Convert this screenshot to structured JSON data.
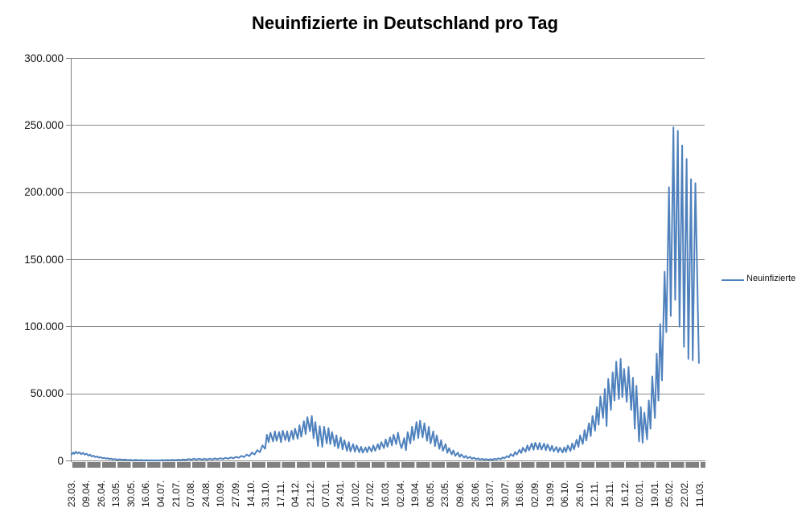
{
  "chart_data": {
    "type": "line",
    "title": "Neuinfizierte in Deutschland pro Tag",
    "xlabel": "",
    "ylabel": "",
    "ylim": [
      0,
      300000
    ],
    "grid": true,
    "legend_position": "right",
    "x_tick_labels_rotated": true,
    "x_tick_interval_days": 17,
    "y_tick_labels": [
      "300.000",
      "250.000",
      "200.000",
      "150.000",
      "100.000",
      "50.000",
      "0"
    ],
    "x_tick_labels": [
      "23.03.",
      "09.04.",
      "26.04.",
      "13.05.",
      "30.05.",
      "16.06.",
      "04.07.",
      "21.07.",
      "07.08.",
      "24.08.",
      "10.09.",
      "27.09.",
      "14.10.",
      "31.10.",
      "17.11.",
      "04.12.",
      "21.12.",
      "07.01.",
      "24.01.",
      "10.02.",
      "27.02.",
      "16.03.",
      "02.04.",
      "19.04.",
      "06.05.",
      "23.05.",
      "09.06.",
      "26.06.",
      "13.07.",
      "30.07.",
      "16.08.",
      "02.09.",
      "19.09.",
      "06.10.",
      "26.10.",
      "12.11.",
      "29.11.",
      "16.12.",
      "02.01.",
      "19.01.",
      "05.02.",
      "22.02.",
      "11.03."
    ],
    "colors": {
      "series": "#4F81BD",
      "gridline": "#868686",
      "axis": "#808080"
    },
    "series": [
      {
        "name": "Neuinfizierte",
        "color": "#4F81BD",
        "points_format": "[day_index_from_23.03.2020, new_infections]",
        "points": [
          [
            0,
            4800
          ],
          [
            2,
            6300
          ],
          [
            3,
            5200
          ],
          [
            5,
            6800
          ],
          [
            7,
            5600
          ],
          [
            9,
            6400
          ],
          [
            11,
            5000
          ],
          [
            13,
            6000
          ],
          [
            15,
            4600
          ],
          [
            17,
            5400
          ],
          [
            19,
            3900
          ],
          [
            21,
            4600
          ],
          [
            23,
            3300
          ],
          [
            25,
            3900
          ],
          [
            27,
            2800
          ],
          [
            29,
            3300
          ],
          [
            31,
            2400
          ],
          [
            33,
            2800
          ],
          [
            35,
            2000
          ],
          [
            37,
            2300
          ],
          [
            39,
            1700
          ],
          [
            41,
            2000
          ],
          [
            43,
            1400
          ],
          [
            45,
            1700
          ],
          [
            47,
            1100
          ],
          [
            49,
            1400
          ],
          [
            52,
            900
          ],
          [
            55,
            1200
          ],
          [
            58,
            700
          ],
          [
            61,
            1000
          ],
          [
            64,
            550
          ],
          [
            67,
            800
          ],
          [
            70,
            450
          ],
          [
            73,
            700
          ],
          [
            76,
            400
          ],
          [
            79,
            600
          ],
          [
            82,
            350
          ],
          [
            85,
            550
          ],
          [
            88,
            350
          ],
          [
            91,
            500
          ],
          [
            94,
            300
          ],
          [
            97,
            500
          ],
          [
            100,
            350
          ],
          [
            103,
            600
          ],
          [
            106,
            400
          ],
          [
            109,
            650
          ],
          [
            112,
            450
          ],
          [
            115,
            750
          ],
          [
            118,
            500
          ],
          [
            121,
            850
          ],
          [
            124,
            600
          ],
          [
            127,
            1100
          ],
          [
            130,
            800
          ],
          [
            133,
            1400
          ],
          [
            136,
            950
          ],
          [
            139,
            1550
          ],
          [
            142,
            1000
          ],
          [
            145,
            1600
          ],
          [
            148,
            1050
          ],
          [
            151,
            1500
          ],
          [
            154,
            1000
          ],
          [
            157,
            1600
          ],
          [
            160,
            1100
          ],
          [
            163,
            1800
          ],
          [
            166,
            1250
          ],
          [
            169,
            2000
          ],
          [
            172,
            1400
          ],
          [
            175,
            2300
          ],
          [
            178,
            1600
          ],
          [
            181,
            2600
          ],
          [
            184,
            1900
          ],
          [
            187,
            3000
          ],
          [
            190,
            2300
          ],
          [
            193,
            3700
          ],
          [
            196,
            2800
          ],
          [
            199,
            4700
          ],
          [
            202,
            3600
          ],
          [
            205,
            6200
          ],
          [
            208,
            4800
          ],
          [
            211,
            8000
          ],
          [
            214,
            6500
          ],
          [
            217,
            11500
          ],
          [
            220,
            9000
          ],
          [
            222,
            19500
          ],
          [
            224,
            14000
          ],
          [
            226,
            21000
          ],
          [
            229,
            14500
          ],
          [
            231,
            22000
          ],
          [
            233,
            15000
          ],
          [
            236,
            21500
          ],
          [
            238,
            14000
          ],
          [
            240,
            22500
          ],
          [
            243,
            15500
          ],
          [
            245,
            22000
          ],
          [
            247,
            14500
          ],
          [
            250,
            22500
          ],
          [
            252,
            16000
          ],
          [
            254,
            24000
          ],
          [
            257,
            16500
          ],
          [
            259,
            26500
          ],
          [
            261,
            18000
          ],
          [
            264,
            29500
          ],
          [
            266,
            20000
          ],
          [
            268,
            32500
          ],
          [
            271,
            22000
          ],
          [
            273,
            33500
          ],
          [
            275,
            17000
          ],
          [
            277,
            29000
          ],
          [
            280,
            11000
          ],
          [
            282,
            26000
          ],
          [
            285,
            10500
          ],
          [
            287,
            25500
          ],
          [
            290,
            13000
          ],
          [
            292,
            24500
          ],
          [
            294,
            12500
          ],
          [
            296,
            21500
          ],
          [
            299,
            11000
          ],
          [
            301,
            19000
          ],
          [
            303,
            9500
          ],
          [
            306,
            17500
          ],
          [
            308,
            8500
          ],
          [
            310,
            15500
          ],
          [
            313,
            7500
          ],
          [
            315,
            14000
          ],
          [
            317,
            7000
          ],
          [
            320,
            12500
          ],
          [
            322,
            6800
          ],
          [
            324,
            11500
          ],
          [
            327,
            6500
          ],
          [
            329,
            10500
          ],
          [
            331,
            6200
          ],
          [
            334,
            10000
          ],
          [
            336,
            6500
          ],
          [
            338,
            10500
          ],
          [
            341,
            7000
          ],
          [
            343,
            11500
          ],
          [
            345,
            7500
          ],
          [
            348,
            12500
          ],
          [
            350,
            8500
          ],
          [
            352,
            14000
          ],
          [
            355,
            9500
          ],
          [
            357,
            16000
          ],
          [
            359,
            10500
          ],
          [
            362,
            17500
          ],
          [
            364,
            11500
          ],
          [
            366,
            19500
          ],
          [
            369,
            12500
          ],
          [
            371,
            21000
          ],
          [
            373,
            13500
          ],
          [
            375,
            9500
          ],
          [
            378,
            17000
          ],
          [
            380,
            8000
          ],
          [
            382,
            21500
          ],
          [
            385,
            13000
          ],
          [
            387,
            25500
          ],
          [
            389,
            15500
          ],
          [
            392,
            29000
          ],
          [
            394,
            17000
          ],
          [
            396,
            30000
          ],
          [
            399,
            17500
          ],
          [
            401,
            28000
          ],
          [
            404,
            15000
          ],
          [
            406,
            25500
          ],
          [
            408,
            13000
          ],
          [
            411,
            22000
          ],
          [
            413,
            11000
          ],
          [
            415,
            19000
          ],
          [
            418,
            9000
          ],
          [
            420,
            15500
          ],
          [
            422,
            7500
          ],
          [
            425,
            12500
          ],
          [
            427,
            6000
          ],
          [
            429,
            9500
          ],
          [
            432,
            4800
          ],
          [
            434,
            7800
          ],
          [
            436,
            3800
          ],
          [
            439,
            6200
          ],
          [
            441,
            3000
          ],
          [
            443,
            4800
          ],
          [
            446,
            2400
          ],
          [
            448,
            3800
          ],
          [
            450,
            1900
          ],
          [
            453,
            3000
          ],
          [
            455,
            1500
          ],
          [
            457,
            2400
          ],
          [
            460,
            1200
          ],
          [
            462,
            1900
          ],
          [
            464,
            1000
          ],
          [
            467,
            1500
          ],
          [
            469,
            850
          ],
          [
            471,
            1300
          ],
          [
            474,
            800
          ],
          [
            476,
            1250
          ],
          [
            478,
            900
          ],
          [
            481,
            1500
          ],
          [
            483,
            1100
          ],
          [
            485,
            1900
          ],
          [
            488,
            1400
          ],
          [
            490,
            2600
          ],
          [
            492,
            1900
          ],
          [
            495,
            3600
          ],
          [
            497,
            2600
          ],
          [
            499,
            5000
          ],
          [
            502,
            3600
          ],
          [
            504,
            6600
          ],
          [
            506,
            4700
          ],
          [
            509,
            8300
          ],
          [
            511,
            5800
          ],
          [
            513,
            9800
          ],
          [
            516,
            6800
          ],
          [
            518,
            11500
          ],
          [
            520,
            7800
          ],
          [
            523,
            13000
          ],
          [
            525,
            8300
          ],
          [
            527,
            13500
          ],
          [
            530,
            8600
          ],
          [
            532,
            13400
          ],
          [
            534,
            8400
          ],
          [
            537,
            12800
          ],
          [
            539,
            8000
          ],
          [
            541,
            12200
          ],
          [
            544,
            7600
          ],
          [
            546,
            11200
          ],
          [
            548,
            7000
          ],
          [
            551,
            10400
          ],
          [
            553,
            6400
          ],
          [
            555,
            9800
          ],
          [
            558,
            6200
          ],
          [
            560,
            10000
          ],
          [
            562,
            6600
          ],
          [
            564,
            11400
          ],
          [
            567,
            7400
          ],
          [
            569,
            13000
          ],
          [
            571,
            8600
          ],
          [
            574,
            15800
          ],
          [
            576,
            10400
          ],
          [
            578,
            19000
          ],
          [
            581,
            12600
          ],
          [
            583,
            23000
          ],
          [
            585,
            15200
          ],
          [
            588,
            28000
          ],
          [
            590,
            18500
          ],
          [
            592,
            33500
          ],
          [
            595,
            22500
          ],
          [
            597,
            40000
          ],
          [
            599,
            27000
          ],
          [
            601,
            48000
          ],
          [
            604,
            32000
          ],
          [
            606,
            53500
          ],
          [
            608,
            26000
          ],
          [
            610,
            61000
          ],
          [
            613,
            38000
          ],
          [
            615,
            66000
          ],
          [
            617,
            45000
          ],
          [
            619,
            74000
          ],
          [
            622,
            46000
          ],
          [
            624,
            76000
          ],
          [
            626,
            47500
          ],
          [
            628,
            68500
          ],
          [
            631,
            44000
          ],
          [
            633,
            70000
          ],
          [
            636,
            38000
          ],
          [
            638,
            62000
          ],
          [
            640,
            24000
          ],
          [
            642,
            56000
          ],
          [
            645,
            14500
          ],
          [
            647,
            40000
          ],
          [
            649,
            13500
          ],
          [
            651,
            36000
          ],
          [
            654,
            16000
          ],
          [
            656,
            45000
          ],
          [
            658,
            24000
          ],
          [
            660,
            63000
          ],
          [
            663,
            32000
          ],
          [
            665,
            80000
          ],
          [
            667,
            45000
          ],
          [
            669,
            102000
          ],
          [
            671,
            60000
          ],
          [
            674,
            141000
          ],
          [
            676,
            96000
          ],
          [
            679,
            204000
          ],
          [
            681,
            108000
          ],
          [
            684,
            248500
          ],
          [
            686,
            120000
          ],
          [
            689,
            246000
          ],
          [
            691,
            100000
          ],
          [
            694,
            235000
          ],
          [
            696,
            85000
          ],
          [
            699,
            225000
          ],
          [
            701,
            76000
          ],
          [
            704,
            210000
          ],
          [
            706,
            75000
          ],
          [
            709,
            207000
          ],
          [
            713,
            73000
          ]
        ]
      }
    ]
  }
}
